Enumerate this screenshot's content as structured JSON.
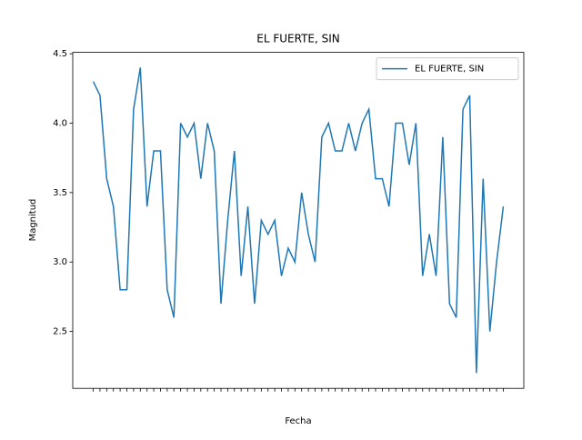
{
  "chart_data": {
    "type": "line",
    "title": "EL FUERTE, SIN",
    "xlabel": "Fecha",
    "ylabel": "Magnitud",
    "categories": [
      null,
      null,
      null,
      null,
      null,
      null,
      null,
      null,
      null,
      null,
      null,
      null,
      null,
      null,
      null,
      null,
      null,
      null,
      null,
      null,
      null,
      null,
      null,
      null,
      null,
      null,
      null,
      null,
      null,
      null,
      null,
      null,
      null,
      null,
      null,
      null,
      null,
      null,
      null,
      null,
      null,
      null,
      null,
      null,
      null,
      null,
      null,
      null,
      null,
      null,
      null,
      null,
      null,
      null,
      null,
      null,
      null,
      null,
      null,
      null,
      null,
      null
    ],
    "series": [
      {
        "name": "EL FUERTE, SIN",
        "color": "#1f77b4",
        "values": [
          4.3,
          4.2,
          3.6,
          3.4,
          2.8,
          2.8,
          4.1,
          4.4,
          3.4,
          3.8,
          3.8,
          2.8,
          2.6,
          4.0,
          3.9,
          4.0,
          3.6,
          4.0,
          3.8,
          2.7,
          3.3,
          3.8,
          2.9,
          3.4,
          2.7,
          3.3,
          3.2,
          3.3,
          2.9,
          3.1,
          3.0,
          3.5,
          3.2,
          3.0,
          3.9,
          4.0,
          3.8,
          3.8,
          4.0,
          3.8,
          4.0,
          4.1,
          3.6,
          3.6,
          3.4,
          4.0,
          4.0,
          3.7,
          4.0,
          2.9,
          3.2,
          2.9,
          3.9,
          2.7,
          2.6,
          4.1,
          4.2,
          2.2,
          3.6,
          2.5,
          3.0,
          3.4
        ]
      }
    ],
    "ylim": [
      2.09,
      4.51
    ],
    "yticks": [
      2.5,
      {
        "value": 3.0,
        "label": "3.0"
      },
      3.5,
      {
        "value": 4.0,
        "label": "4.0"
      },
      4.5
    ],
    "legend": "upper right"
  }
}
